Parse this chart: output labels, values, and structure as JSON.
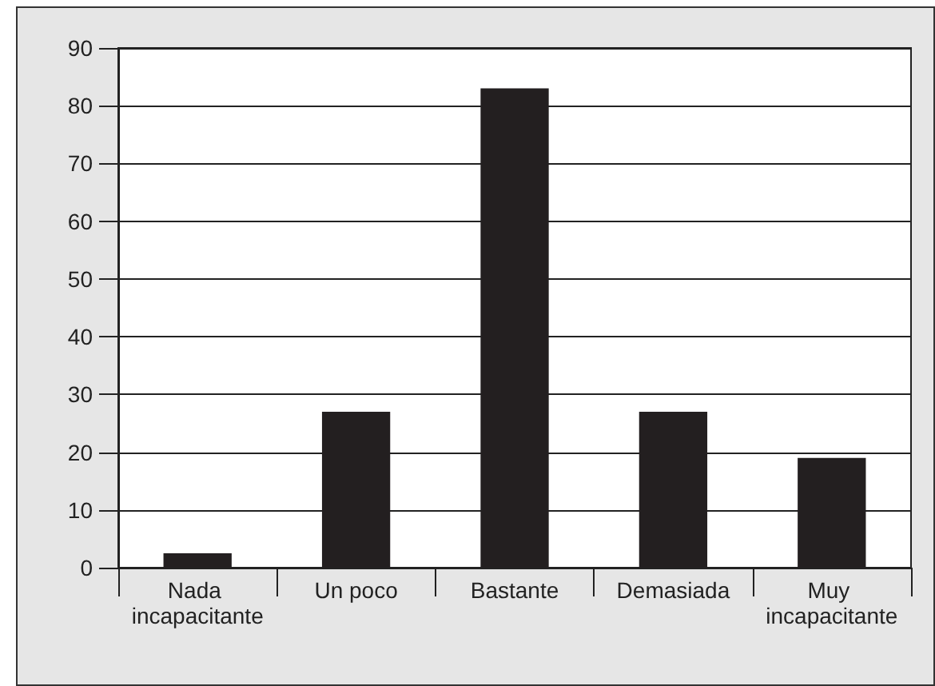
{
  "chart_data": {
    "type": "bar",
    "categories": [
      "Nada incapacitante",
      "Un poco",
      "Bastante",
      "Demasiada",
      "Muy incapacitante"
    ],
    "values": [
      2.5,
      27,
      83,
      27,
      19
    ],
    "color": "#231f20",
    "ylim": [
      0,
      90
    ],
    "yticks": [
      0,
      10,
      20,
      30,
      40,
      50,
      60,
      70,
      80,
      90
    ],
    "grid": "y"
  }
}
